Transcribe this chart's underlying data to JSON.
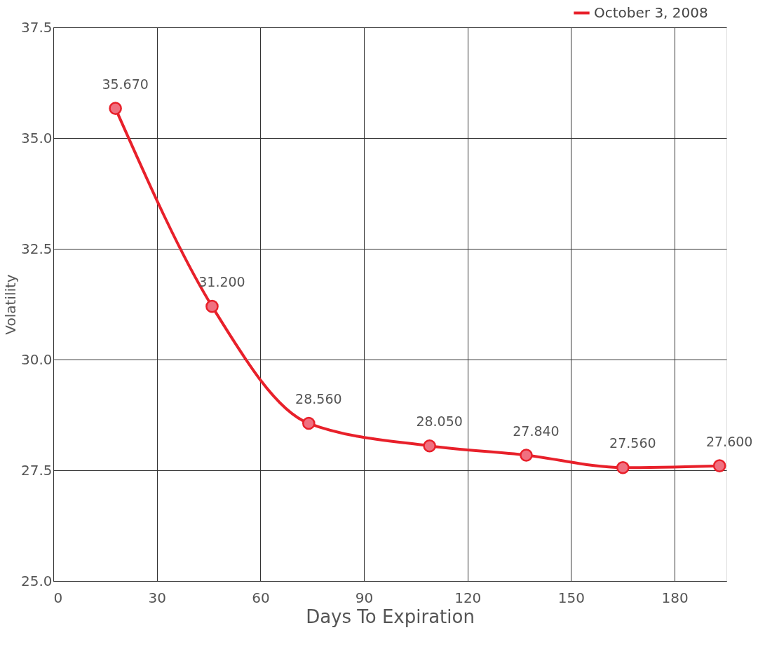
{
  "chart_data": {
    "type": "line",
    "xlabel": "Days To Expiration",
    "ylabel": "Volatility",
    "x": [
      18,
      46,
      74,
      109,
      137,
      165,
      193
    ],
    "series": [
      {
        "name": "October 3, 2008",
        "color": "#e8202a",
        "values": [
          35.67,
          31.2,
          28.56,
          28.05,
          27.84,
          27.56,
          27.6
        ],
        "value_labels": [
          "35.670",
          "31.200",
          "28.560",
          "28.050",
          "27.840",
          "27.560",
          "27.600"
        ]
      }
    ],
    "xlim": [
      0,
      195
    ],
    "xticks": [
      0,
      30,
      60,
      90,
      120,
      150,
      180
    ],
    "ylim": [
      25,
      37.5
    ],
    "yticks": [
      {
        "value": 25,
        "label": "25.0"
      },
      27.5,
      {
        "value": 30,
        "label": "30.0"
      },
      32.5,
      {
        "value": 35,
        "label": "35.0"
      },
      37.5
    ],
    "grid": true,
    "legend": "top right",
    "marker": "circle",
    "line_style": "solid"
  }
}
